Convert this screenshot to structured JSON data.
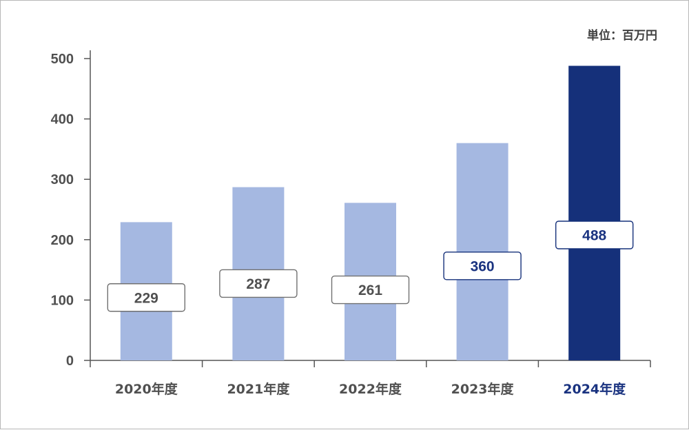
{
  "chart_data": {
    "type": "bar",
    "unit": "単位：百万円",
    "categories": [
      "2020年度",
      "2021年度",
      "2022年度",
      "2023年度",
      "2024年度"
    ],
    "values": [
      229,
      287,
      261,
      360,
      488
    ],
    "value_labels": [
      "229",
      "287",
      "261",
      "360",
      "488"
    ],
    "highlighted": [
      false,
      false,
      false,
      true,
      true
    ],
    "emphasized_bar_index": 4,
    "ylim": [
      0,
      500
    ],
    "yticks": [
      "0",
      "100",
      "200",
      "300",
      "400",
      "500"
    ],
    "grid": false,
    "legend": "none",
    "colors": {
      "bar": "#a5b8e1",
      "bar_highlight": "#15307a",
      "label_text": "#505050",
      "label_text_highlight": "#1a3380",
      "axis": "#555555"
    }
  }
}
